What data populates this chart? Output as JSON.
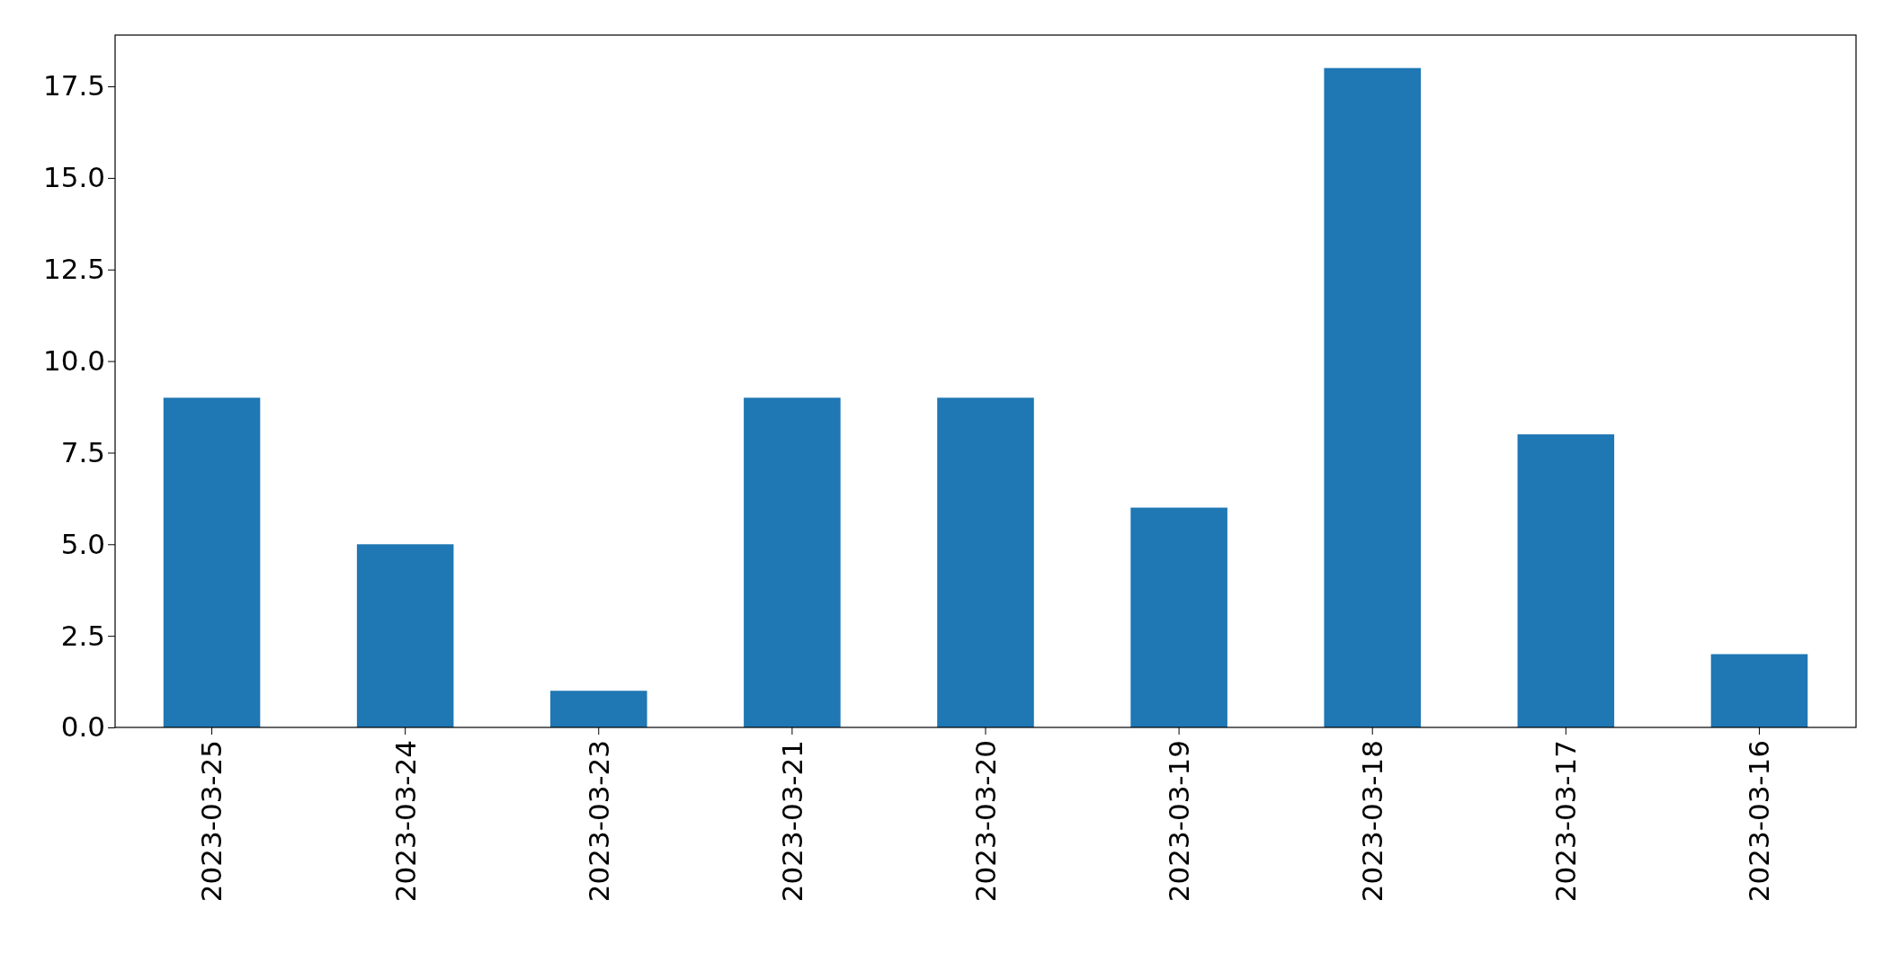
{
  "chart_data": {
    "type": "bar",
    "categories": [
      "2023-03-25",
      "2023-03-24",
      "2023-03-23",
      "2023-03-21",
      "2023-03-20",
      "2023-03-19",
      "2023-03-18",
      "2023-03-17",
      "2023-03-16"
    ],
    "values": [
      9,
      5,
      1,
      9,
      9,
      6,
      18,
      8,
      2
    ],
    "color": "#1f77b4",
    "ylim": [
      0,
      18.9
    ],
    "yticks": [
      {
        "value": 0,
        "label": "0.0"
      },
      {
        "value": 2.5,
        "label": "2.5"
      },
      {
        "value": 5,
        "label": "5.0"
      },
      {
        "value": 7.5,
        "label": "7.5"
      },
      {
        "value": 10,
        "label": "10.0"
      },
      {
        "value": 12.5,
        "label": "12.5"
      },
      {
        "value": 15,
        "label": "15.0"
      },
      {
        "value": 17.5,
        "label": "17.5"
      }
    ]
  }
}
